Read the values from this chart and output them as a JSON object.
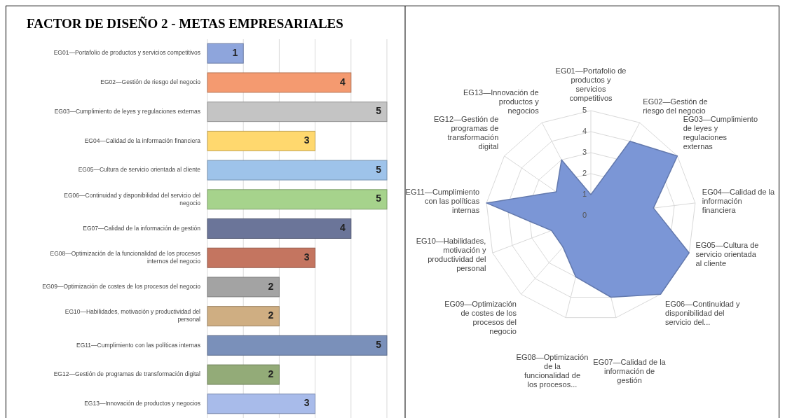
{
  "chart_data": [
    {
      "type": "bar",
      "orientation": "horizontal",
      "title": "FACTOR DE DISEÑO 2 - METAS EMPRESARIALES",
      "categories": [
        "EG01—Portafolio de productos y servicios competitivos",
        "EG02—Gestión de riesgo del negocio",
        "EG03—Cumplimiento de leyes y regulaciones externas",
        "EG04—Calidad de la información financiera",
        "EG05—Cultura de servicio orientada al cliente",
        "EG06—Continuidad y disponibilidad del servicio del negocio",
        "EG07—Calidad de la información de gestión",
        "EG08—Optimización de la funcionalidad de los procesos internos del negocio",
        "EG09—Optimización de costes de los procesos del negocio",
        "EG10—Habilidades, motivación y productividad del personal",
        "EG11—Cumplimiento con las políticas internas",
        "EG12—Gestión de programas de transformación digital",
        "EG13—Innovación de productos y negocios"
      ],
      "values": [
        1,
        4,
        5,
        3,
        5,
        5,
        4,
        3,
        2,
        2,
        5,
        2,
        3
      ],
      "colors": [
        "#8ea5dc",
        "#f49a70",
        "#c4c4c4",
        "#ffd86e",
        "#9ec3ea",
        "#a6d38c",
        "#6b7599",
        "#c47560",
        "#a3a3a3",
        "#cfae82",
        "#7a90ba",
        "#93ab78",
        "#a8bbea"
      ],
      "data_labels": true,
      "xlim": [
        0,
        5
      ],
      "xticks": [
        {
          "value": 0,
          "label": null
        },
        {
          "value": 1,
          "label": null
        },
        {
          "value": 2,
          "label": null
        },
        {
          "value": 3,
          "label": null
        },
        {
          "value": 4,
          "label": null
        },
        {
          "value": 5,
          "label": null
        }
      ],
      "grid": "x",
      "tick_labels": "y",
      "legend": false
    },
    {
      "type": "radar",
      "categories": [
        "EG01—Portafolio de productos y servicios competitivos",
        "EG02—Gestión de riesgo del negocio",
        "EG03—Cumplimiento de leyes y regulaciones externas",
        "EG04—Calidad de la información financiera",
        "EG05—Cultura de servicio orientada al cliente",
        "EG06—Continuidad y disponibilidad del servicio del...",
        "EG07—Calidad de la información de gestión",
        "EG08—Optimización de la funcionalidad de los procesos...",
        "EG09—Optimización de costes de los procesos del negocio",
        "EG10—Habilidades, motivación y productividad del personal",
        "EG11—Cumplimiento con las políticas internas",
        "EG12—Gestión de programas de transformación digital",
        "EG13—Innovación de productos y negocios"
      ],
      "series": [
        {
          "color": "#7b96d6",
          "values": [
            1,
            4,
            5,
            3,
            5,
            5,
            4,
            3,
            2,
            2,
            5,
            2,
            3
          ]
        }
      ],
      "ylim": [
        0,
        5
      ],
      "yticks": [
        0,
        1,
        2,
        3,
        4,
        5
      ],
      "grid": true,
      "legend": false,
      "marker": "none"
    }
  ]
}
